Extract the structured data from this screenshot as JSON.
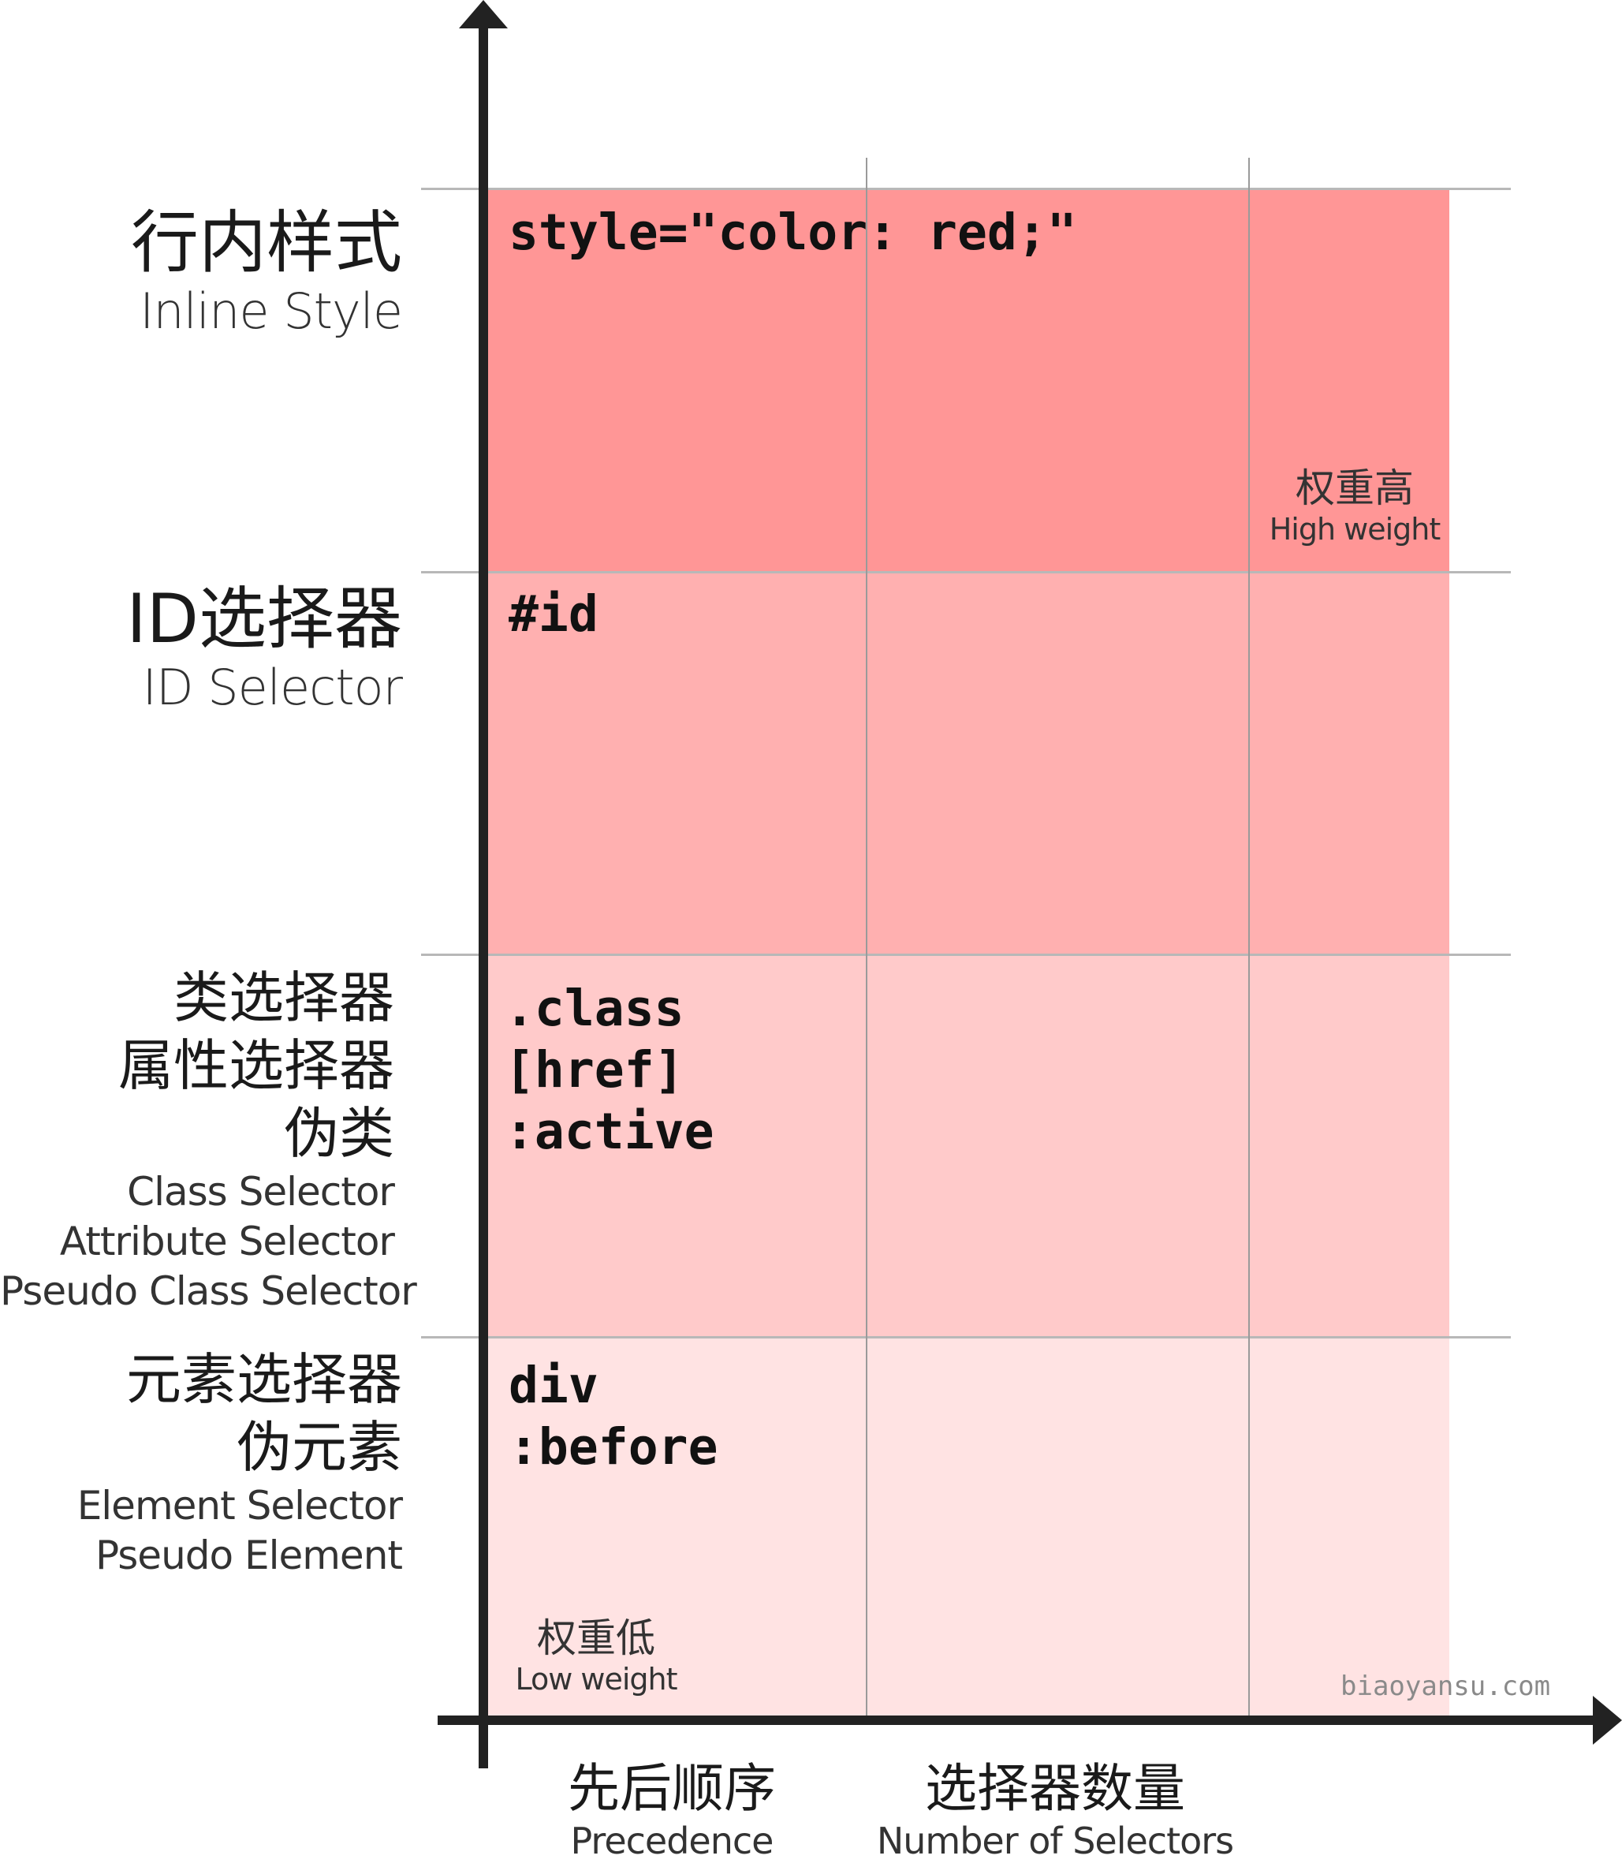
{
  "rows": [
    {
      "zh": [
        "行内样式"
      ],
      "en": [
        "Inline Style"
      ],
      "code": [
        "style=\"color: red;\""
      ],
      "color": "#ff9696"
    },
    {
      "zh": [
        "ID选择器"
      ],
      "en": [
        "ID Selector"
      ],
      "code": [
        "#id"
      ],
      "color": "#ffb0b0"
    },
    {
      "zh": [
        "类选择器",
        "属性选择器",
        "伪类"
      ],
      "en": [
        "Class Selector",
        "Attribute Selector",
        "Pseudo Class Selector"
      ],
      "code": [
        ".class",
        "[href]",
        ":active"
      ],
      "color": "#ffcaca"
    },
    {
      "zh": [
        "元素选择器",
        "伪元素"
      ],
      "en": [
        "Element Selector",
        "Pseudo Element"
      ],
      "code": [
        "div",
        ":before"
      ],
      "color": "#ffe3e3"
    }
  ],
  "weight_high": {
    "zh": "权重高",
    "en": "High weight"
  },
  "weight_low": {
    "zh": "权重低",
    "en": "Low weight"
  },
  "x_axis": [
    {
      "zh": "先后顺序",
      "en": "Precedence"
    },
    {
      "zh": "选择器数量",
      "en": "Number of Selectors"
    }
  ],
  "watermark": "biaoyansu.com"
}
